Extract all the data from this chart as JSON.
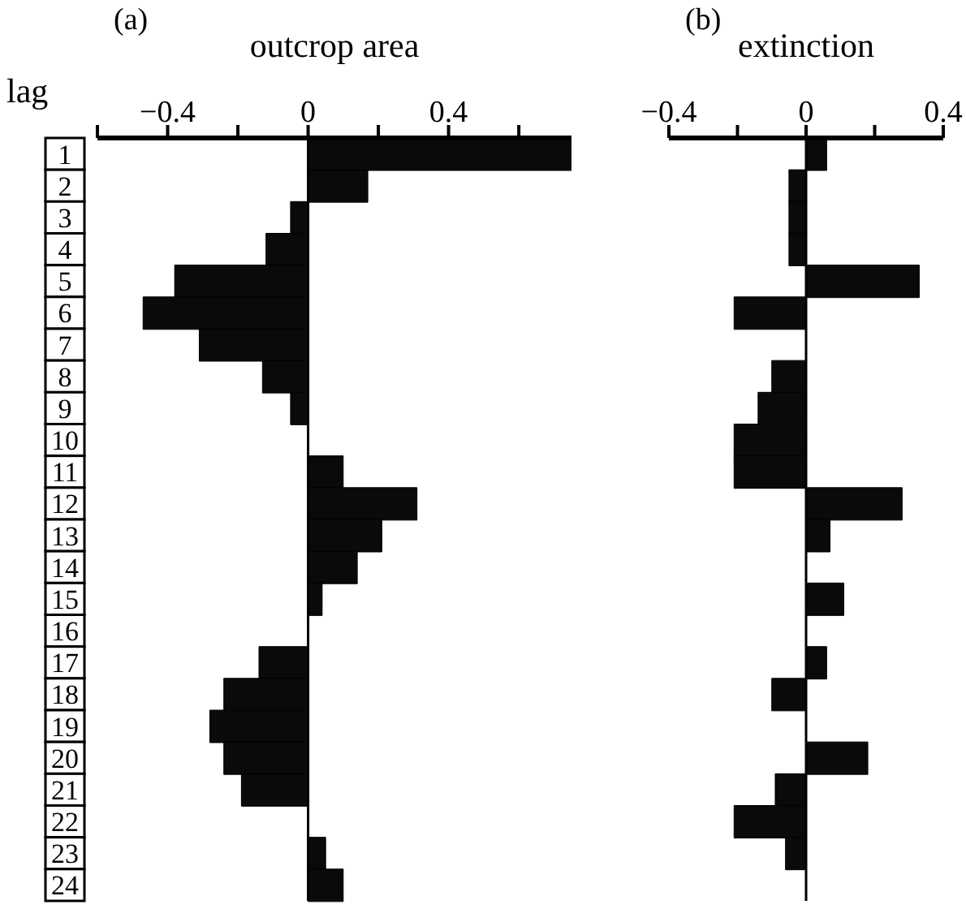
{
  "chart_data": [
    {
      "type": "bar",
      "orientation": "horizontal",
      "title": "outcrop area",
      "ylabel": "lag",
      "annotations": [
        "(a)"
      ],
      "categories": [
        "1",
        "2",
        "3",
        "4",
        "5",
        "6",
        "7",
        "8",
        "9",
        "10",
        "11",
        "12",
        "13",
        "14",
        "15",
        "16",
        "17",
        "18",
        "19",
        "20",
        "21",
        "22",
        "23",
        "24"
      ],
      "values": [
        0.75,
        0.17,
        -0.05,
        -0.12,
        -0.38,
        -0.47,
        -0.31,
        -0.13,
        -0.05,
        0,
        0.1,
        0.31,
        0.21,
        0.14,
        0.04,
        0,
        -0.14,
        -0.24,
        -0.28,
        -0.24,
        -0.19,
        0,
        0.05,
        0.1
      ],
      "color": "#0a0a0a",
      "xlim": [
        -0.6,
        0.75
      ],
      "xticks": [
        {
          "value": -0.6,
          "label": null
        },
        -0.4,
        {
          "value": -0.2,
          "label": null
        },
        0,
        {
          "value": 0.2,
          "label": null
        },
        0.4,
        {
          "value": 0.6,
          "label": null
        }
      ],
      "ref_lines": [
        {
          "axis": "x",
          "value": 0,
          "color": "#000000"
        }
      ]
    },
    {
      "type": "bar",
      "orientation": "horizontal",
      "title": "extinction",
      "annotations": [
        "(b)"
      ],
      "categories": [
        "1",
        "2",
        "3",
        "4",
        "5",
        "6",
        "7",
        "8",
        "9",
        "10",
        "11",
        "12",
        "13",
        "14",
        "15",
        "16",
        "17",
        "18",
        "19",
        "20",
        "21",
        "22",
        "23",
        "24"
      ],
      "values": [
        0.06,
        -0.05,
        -0.05,
        -0.05,
        0.33,
        -0.21,
        0,
        -0.1,
        -0.14,
        -0.21,
        -0.21,
        0.28,
        0.07,
        0,
        0.11,
        0,
        0.06,
        -0.1,
        0,
        0.18,
        -0.09,
        -0.21,
        -0.06,
        0
      ],
      "color": "#0a0a0a",
      "xlim": [
        -0.4,
        0.4
      ],
      "xticks": [
        -0.4,
        {
          "value": -0.2,
          "label": null
        },
        0,
        {
          "value": 0.2,
          "label": null
        },
        0.4
      ],
      "tick_labels": "x",
      "ref_lines": [
        {
          "axis": "x",
          "value": 0,
          "color": "#000000"
        }
      ]
    }
  ]
}
